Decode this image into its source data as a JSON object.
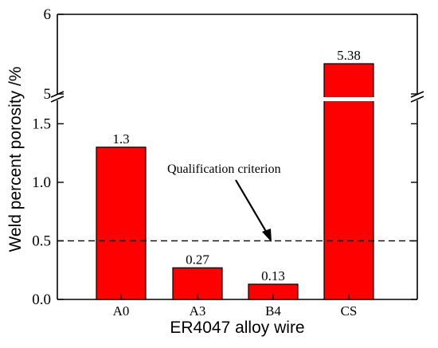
{
  "chart_data": {
    "type": "bar",
    "title": "",
    "xlabel": "ER4047 alloy wire",
    "ylabel": "Weld percent porosity /%",
    "categories": [
      "A0",
      "A3",
      "B4",
      "CS"
    ],
    "values": [
      1.3,
      0.27,
      0.13,
      5.38
    ],
    "value_labels": [
      "1.3",
      "0.27",
      "0.13",
      "5.38"
    ],
    "y_axis_segments": [
      {
        "ylim": [
          0,
          1.7
        ],
        "ticks": [
          "0.0",
          "0.5",
          "1.0",
          "1.5"
        ],
        "tick_values": [
          0,
          0.5,
          1.0,
          1.5
        ]
      },
      {
        "ylim": [
          5,
          6
        ],
        "ticks": [
          "5",
          "6"
        ],
        "tick_values": [
          5,
          6
        ]
      }
    ],
    "axis_break": true,
    "reference_line": {
      "value": 0.5,
      "style": "dashed",
      "label": "Qualification criterion"
    },
    "colors": {
      "bar": "#ff0000",
      "bar_edge": "#000000",
      "reference_line": "#000000"
    },
    "grid": false,
    "legend": "none"
  }
}
